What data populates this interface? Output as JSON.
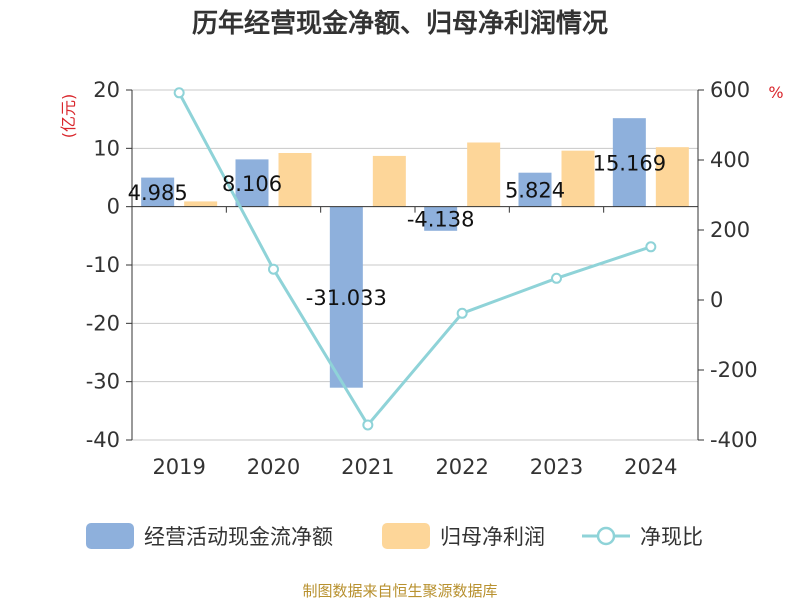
{
  "chart_data": {
    "type": "bar",
    "title": "历年经营现金净额、归母净利润情况",
    "categories": [
      "2019",
      "2020",
      "2021",
      "2022",
      "2023",
      "2024"
    ],
    "series": [
      {
        "name": "经营活动现金流净额",
        "kind": "bar",
        "axis": "left",
        "color": "#8eb0dc",
        "values": [
          4.985,
          8.106,
          -31.033,
          -4.138,
          5.824,
          15.169
        ],
        "labels": [
          "4.985",
          "8.106",
          "-31.033",
          "-4.138",
          "5.824",
          "15.169"
        ]
      },
      {
        "name": "归母净利润",
        "kind": "bar",
        "axis": "left",
        "color": "#fdd699",
        "values": [
          0.9,
          9.2,
          8.7,
          11.0,
          9.6,
          10.2
        ]
      },
      {
        "name": "净现比",
        "kind": "line",
        "axis": "right",
        "color": "#8fd3d8",
        "values": [
          592,
          88,
          -357,
          -38,
          62,
          152
        ]
      }
    ],
    "left_axis": {
      "unit": "(亿元)",
      "min": -40,
      "max": 20,
      "ticks": [
        20,
        10,
        0,
        -10,
        -20,
        -30,
        -40
      ]
    },
    "right_axis": {
      "unit": "%",
      "min": -400,
      "max": 600,
      "ticks": [
        600,
        400,
        200,
        0,
        -200,
        -400
      ]
    },
    "grid": true,
    "legend": "bottom"
  },
  "source": "制图数据来自恒生聚源数据库"
}
